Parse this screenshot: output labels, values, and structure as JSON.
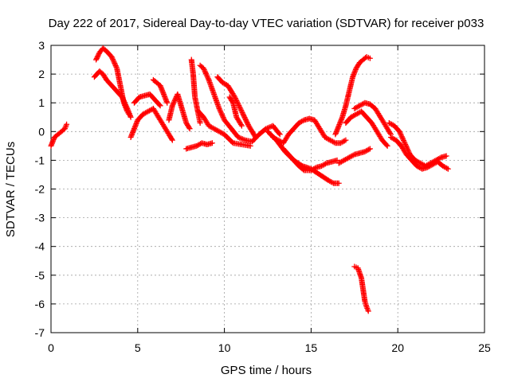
{
  "chart_data": {
    "type": "scatter",
    "title": "Day 222 of 2017, Sidereal Day-to-day VTEC variation (SDTVAR) for receiver p033",
    "xlabel": "GPS time / hours",
    "ylabel": "SDTVAR / TECUs",
    "xlim": [
      0,
      25
    ],
    "ylim": [
      -7,
      3
    ],
    "xticks": [
      0,
      5,
      10,
      15,
      20,
      25
    ],
    "yticks": [
      -7,
      -6,
      -5,
      -4,
      -3,
      -2,
      -1,
      0,
      1,
      2,
      3
    ],
    "grid": true,
    "marker": "+",
    "color": "#ff0000",
    "series": [
      {
        "name": "track-a",
        "x": [
          0.0,
          0.2,
          0.4,
          0.6,
          0.8,
          0.9
        ],
        "y": [
          -0.5,
          -0.2,
          -0.1,
          0.0,
          0.1,
          0.25
        ]
      },
      {
        "name": "track-b",
        "x": [
          2.6,
          2.8,
          3.0,
          3.2,
          3.5,
          3.8,
          4.0,
          4.2,
          4.4,
          4.5
        ],
        "y": [
          2.5,
          2.75,
          2.9,
          2.8,
          2.6,
          2.2,
          1.6,
          1.0,
          0.7,
          0.6
        ]
      },
      {
        "name": "track-c",
        "x": [
          2.5,
          2.8,
          3.0,
          3.2,
          3.5,
          3.8,
          4.1,
          4.4,
          4.6
        ],
        "y": [
          1.9,
          2.1,
          2.0,
          1.8,
          1.6,
          1.4,
          1.2,
          0.8,
          0.5
        ]
      },
      {
        "name": "track-d",
        "x": [
          4.6,
          4.8,
          5.0,
          5.3,
          5.6,
          5.9,
          6.2,
          6.5,
          6.8,
          7.0
        ],
        "y": [
          -0.2,
          0.1,
          0.4,
          0.6,
          0.7,
          0.8,
          0.5,
          0.2,
          -0.1,
          -0.3
        ]
      },
      {
        "name": "track-e",
        "x": [
          4.8,
          5.1,
          5.4,
          5.7,
          6.0,
          6.3
        ],
        "y": [
          1.0,
          1.2,
          1.25,
          1.3,
          1.1,
          0.9
        ]
      },
      {
        "name": "track-f",
        "x": [
          5.9,
          6.1,
          6.3,
          6.5,
          6.7
        ],
        "y": [
          1.8,
          1.7,
          1.6,
          1.3,
          1.0
        ]
      },
      {
        "name": "track-g",
        "x": [
          6.8,
          7.0,
          7.3,
          7.6,
          7.8,
          8.0
        ],
        "y": [
          0.4,
          0.9,
          1.3,
          0.7,
          0.3,
          0.1
        ]
      },
      {
        "name": "track-h",
        "x": [
          8.1,
          8.2,
          8.3,
          8.5,
          8.6
        ],
        "y": [
          2.5,
          2.0,
          1.2,
          0.6,
          0.3
        ]
      },
      {
        "name": "track-i",
        "x": [
          7.8,
          8.1,
          8.4,
          8.7,
          9.0,
          9.3
        ],
        "y": [
          -0.6,
          -0.55,
          -0.5,
          -0.4,
          -0.45,
          -0.4
        ]
      },
      {
        "name": "track-j",
        "x": [
          8.6,
          8.8,
          9.1,
          9.4,
          9.7,
          10.0,
          10.4,
          10.8,
          11.2,
          11.6,
          12.0,
          12.4,
          12.8,
          13.2
        ],
        "y": [
          2.3,
          2.2,
          1.8,
          1.3,
          0.8,
          0.4,
          0.1,
          -0.2,
          -0.3,
          -0.35,
          -0.1,
          0.1,
          0.2,
          -0.1
        ]
      },
      {
        "name": "track-k",
        "x": [
          8.5,
          8.8,
          9.1,
          9.4,
          9.7,
          10.0,
          10.5,
          11.0,
          11.5
        ],
        "y": [
          0.7,
          0.5,
          0.2,
          0.1,
          0.0,
          -0.1,
          -0.4,
          -0.45,
          -0.5
        ]
      },
      {
        "name": "track-l",
        "x": [
          9.6,
          9.9,
          10.2,
          10.6,
          11.0,
          11.4,
          11.8
        ],
        "y": [
          1.9,
          1.7,
          1.6,
          1.2,
          0.7,
          0.2,
          -0.2
        ]
      },
      {
        "name": "track-m",
        "x": [
          10.3,
          10.5,
          10.7,
          11.0
        ],
        "y": [
          1.2,
          1.0,
          0.5,
          0.2
        ]
      },
      {
        "name": "track-n",
        "x": [
          12.5,
          13.0,
          13.5,
          14.0,
          14.5,
          15.0,
          15.5,
          16.0,
          16.3,
          16.6
        ],
        "y": [
          0.0,
          -0.3,
          -0.7,
          -1.0,
          -1.2,
          -1.3,
          -1.5,
          -1.7,
          -1.8,
          -1.8
        ]
      },
      {
        "name": "track-o",
        "x": [
          13.4,
          13.7,
          14.0,
          14.3,
          14.6,
          15.0,
          15.3,
          15.6,
          15.9,
          16.2,
          16.5
        ],
        "y": [
          -0.6,
          -0.8,
          -1.0,
          -1.2,
          -1.35,
          -1.35,
          -1.25,
          -1.2,
          -1.1,
          -1.05,
          -1.0
        ]
      },
      {
        "name": "track-p",
        "x": [
          12.8,
          13.1,
          13.4,
          13.7,
          14.0,
          14.3,
          14.6,
          14.9,
          15.2,
          15.5,
          15.8,
          16.1,
          16.4,
          16.7,
          17.0
        ],
        "y": [
          -0.2,
          -0.3,
          -0.4,
          -0.1,
          0.1,
          0.3,
          0.4,
          0.45,
          0.4,
          0.1,
          -0.2,
          -0.3,
          -0.4,
          -0.4,
          -0.3
        ]
      },
      {
        "name": "track-q",
        "x": [
          16.6,
          16.9,
          17.2,
          17.5,
          17.8,
          18.1,
          18.4
        ],
        "y": [
          -1.1,
          -1.0,
          -0.9,
          -0.8,
          -0.75,
          -0.7,
          -0.6
        ]
      },
      {
        "name": "track-r",
        "x": [
          16.4,
          16.6,
          16.8,
          17.0,
          17.2,
          17.4,
          17.6,
          17.8,
          18.0,
          18.2,
          18.4
        ],
        "y": [
          -0.1,
          0.2,
          0.5,
          0.9,
          1.4,
          1.9,
          2.2,
          2.4,
          2.5,
          2.6,
          2.55
        ]
      },
      {
        "name": "track-s",
        "x": [
          17.5,
          17.8,
          18.1,
          18.4,
          18.7,
          19.0,
          19.3,
          19.6
        ],
        "y": [
          0.8,
          0.9,
          1.0,
          0.95,
          0.8,
          0.5,
          0.2,
          -0.1
        ]
      },
      {
        "name": "track-t",
        "x": [
          17.0,
          17.3,
          17.6,
          17.9,
          18.2,
          18.5,
          18.8,
          19.1,
          19.4
        ],
        "y": [
          0.3,
          0.5,
          0.6,
          0.7,
          0.5,
          0.3,
          0.0,
          -0.3,
          -0.5
        ]
      },
      {
        "name": "track-u",
        "x": [
          19.5,
          19.8,
          20.1,
          20.4,
          20.7,
          21.0,
          21.3,
          21.6,
          21.9,
          22.2,
          22.5,
          22.8
        ],
        "y": [
          0.3,
          0.2,
          0.0,
          -0.4,
          -0.8,
          -1.0,
          -1.1,
          -1.2,
          -1.1,
          -1.0,
          -0.9,
          -0.85
        ]
      },
      {
        "name": "track-v",
        "x": [
          19.6,
          19.9,
          20.2,
          20.5,
          20.8,
          21.1,
          21.4,
          21.7,
          22.0,
          22.3,
          22.6,
          22.9
        ],
        "y": [
          -0.2,
          -0.3,
          -0.5,
          -0.8,
          -1.0,
          -1.2,
          -1.3,
          -1.25,
          -1.15,
          -1.05,
          -1.2,
          -1.3
        ]
      },
      {
        "name": "track-w",
        "x": [
          17.5,
          17.7,
          17.9,
          18.0,
          18.1,
          18.2,
          18.3
        ],
        "y": [
          -4.7,
          -4.75,
          -5.1,
          -5.5,
          -5.9,
          -6.1,
          -6.25
        ]
      }
    ]
  }
}
